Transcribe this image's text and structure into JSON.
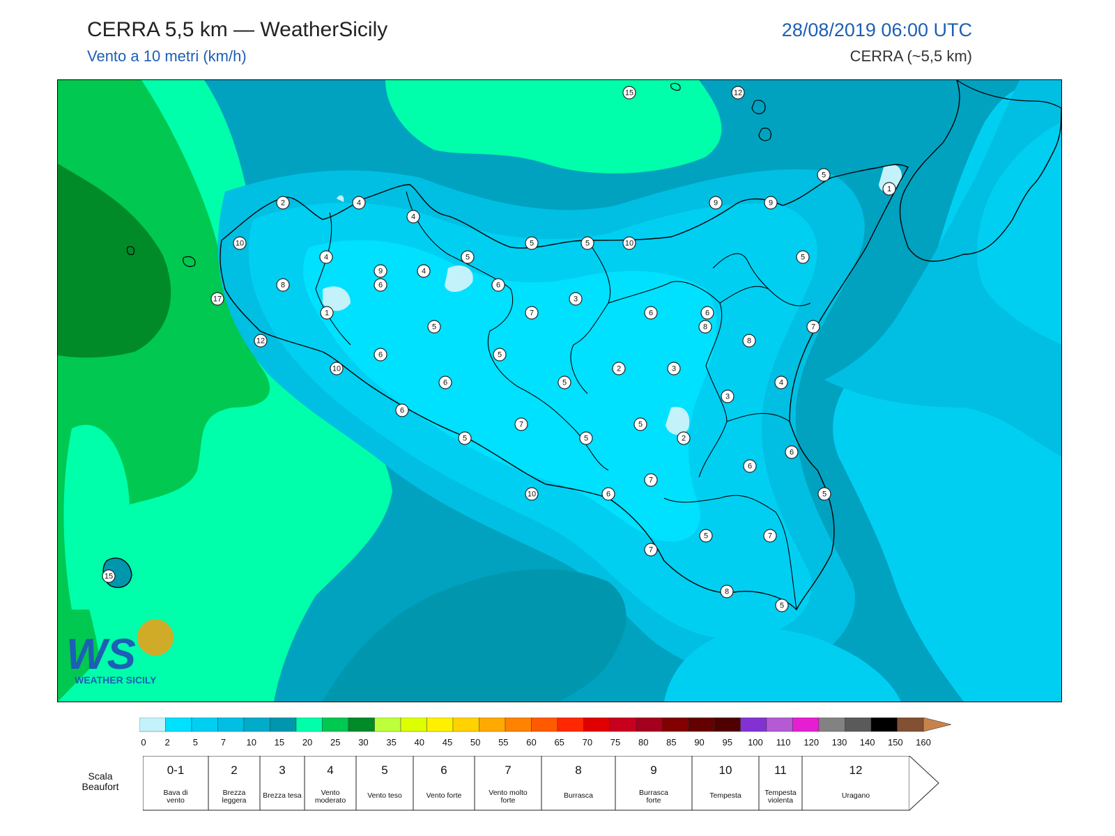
{
  "header": {
    "title": "CERRA 5,5 km — WeatherSicily",
    "subtitle": "Vento a 10 metri (km/h)",
    "datetime": "28/08/2019 06:00 UTC",
    "model": "CERRA (~5,5 km)",
    "accent_color": "#1c5fb5"
  },
  "logo": {
    "text": "WEATHER SICILY",
    "mark": "WS"
  },
  "colorbar": {
    "ticks": [
      "0",
      "2",
      "5",
      "7",
      "10",
      "15",
      "20",
      "25",
      "30",
      "35",
      "40",
      "45",
      "50",
      "55",
      "60",
      "65",
      "70",
      "75",
      "80",
      "85",
      "90",
      "95",
      "100",
      "110",
      "120",
      "130",
      "140",
      "150",
      "160"
    ],
    "colors": [
      "#c3f2fb",
      "#00e0ff",
      "#00cff2",
      "#00bfe2",
      "#00acc8",
      "#0096ae",
      "#00ffaa",
      "#00c850",
      "#008a28",
      "#beff3c",
      "#deff00",
      "#fff000",
      "#ffd200",
      "#ffaa00",
      "#ff8200",
      "#ff5a00",
      "#ff2800",
      "#e10000",
      "#c8001e",
      "#a5001e",
      "#820000",
      "#640000",
      "#500000",
      "#8232d2",
      "#b45ad2",
      "#e61ed2",
      "#828282",
      "#5a5a5a",
      "#000000",
      "#825032",
      "#c8824b"
    ]
  },
  "beaufort": {
    "label": "Scala Beaufort",
    "scale": [
      {
        "num": "0-1",
        "name": "Bava di vento"
      },
      {
        "num": "2",
        "name": "Brezza leggera"
      },
      {
        "num": "3",
        "name": "Brezza tesa"
      },
      {
        "num": "4",
        "name": "Vento moderato"
      },
      {
        "num": "5",
        "name": "Vento teso"
      },
      {
        "num": "6",
        "name": "Vento forte"
      },
      {
        "num": "7",
        "name": "Vento molto forte"
      },
      {
        "num": "8",
        "name": "Burrasca"
      },
      {
        "num": "9",
        "name": "Burrasca forte"
      },
      {
        "num": "10",
        "name": "Tempesta"
      },
      {
        "num": "11",
        "name": "Tempesta violenta"
      },
      {
        "num": "12",
        "name": "Uragano"
      }
    ]
  },
  "stations": [
    "15",
    "12",
    "5",
    "1",
    "2",
    "4",
    "4",
    "10",
    "9",
    "9",
    "4",
    "5",
    "5",
    "10",
    "9",
    "6",
    "5",
    "5",
    "8",
    "6",
    "4",
    "6",
    "6",
    "7",
    "3",
    "6",
    "17",
    "1",
    "5",
    "8",
    "8",
    "7",
    "12",
    "5",
    "6",
    "10",
    "6",
    "2",
    "3",
    "4",
    "5",
    "3",
    "6",
    "7",
    "5",
    "2",
    "5",
    "6",
    "6",
    "5",
    "7",
    "10",
    "6",
    "7",
    "5",
    "5",
    "7",
    "8",
    "5",
    "15"
  ]
}
